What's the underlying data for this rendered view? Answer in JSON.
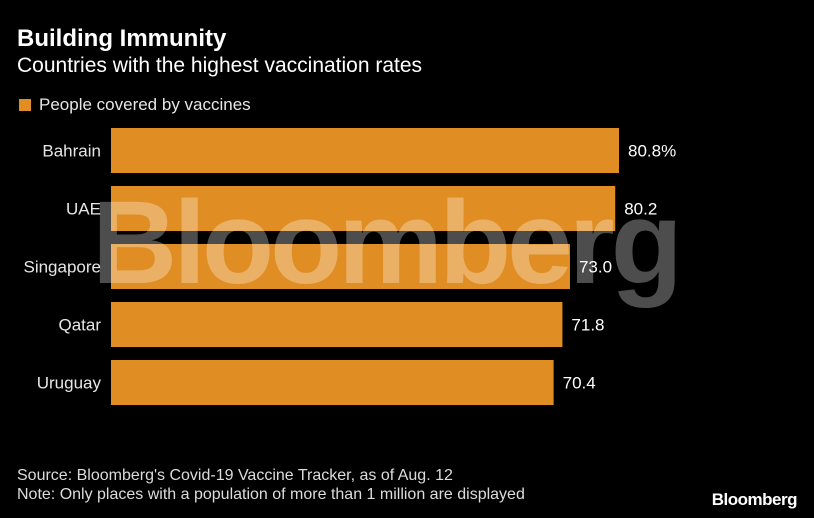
{
  "header": {
    "title": "Building Immunity",
    "subtitle": "Countries with the highest vaccination rates"
  },
  "legend": {
    "label": "People covered by vaccines",
    "color": "#e08e24"
  },
  "colors": {
    "background": "#000000",
    "bar": "#e08e24",
    "text": "#ffffff"
  },
  "watermark": {
    "text": "Bloomberg"
  },
  "chart_data": {
    "type": "bar",
    "orientation": "horizontal",
    "categories": [
      "Bahrain",
      "UAE",
      "Singapore",
      "Qatar",
      "Uruguay"
    ],
    "series": [
      {
        "name": "People covered by vaccines",
        "values": [
          80.8,
          80.2,
          73.0,
          71.8,
          70.4
        ]
      }
    ],
    "data_labels": [
      "80.8%",
      "80.2",
      "73.0",
      "71.8",
      "70.4"
    ],
    "xlim": [
      0,
      80.8
    ],
    "grid": false,
    "legend_position": "top-left"
  },
  "footer": {
    "source": "Source: Bloomberg's Covid-19 Vaccine Tracker, as of Aug. 12",
    "note": "Note: Only places with a population of more than 1 million are displayed",
    "brand": "Bloomberg"
  }
}
